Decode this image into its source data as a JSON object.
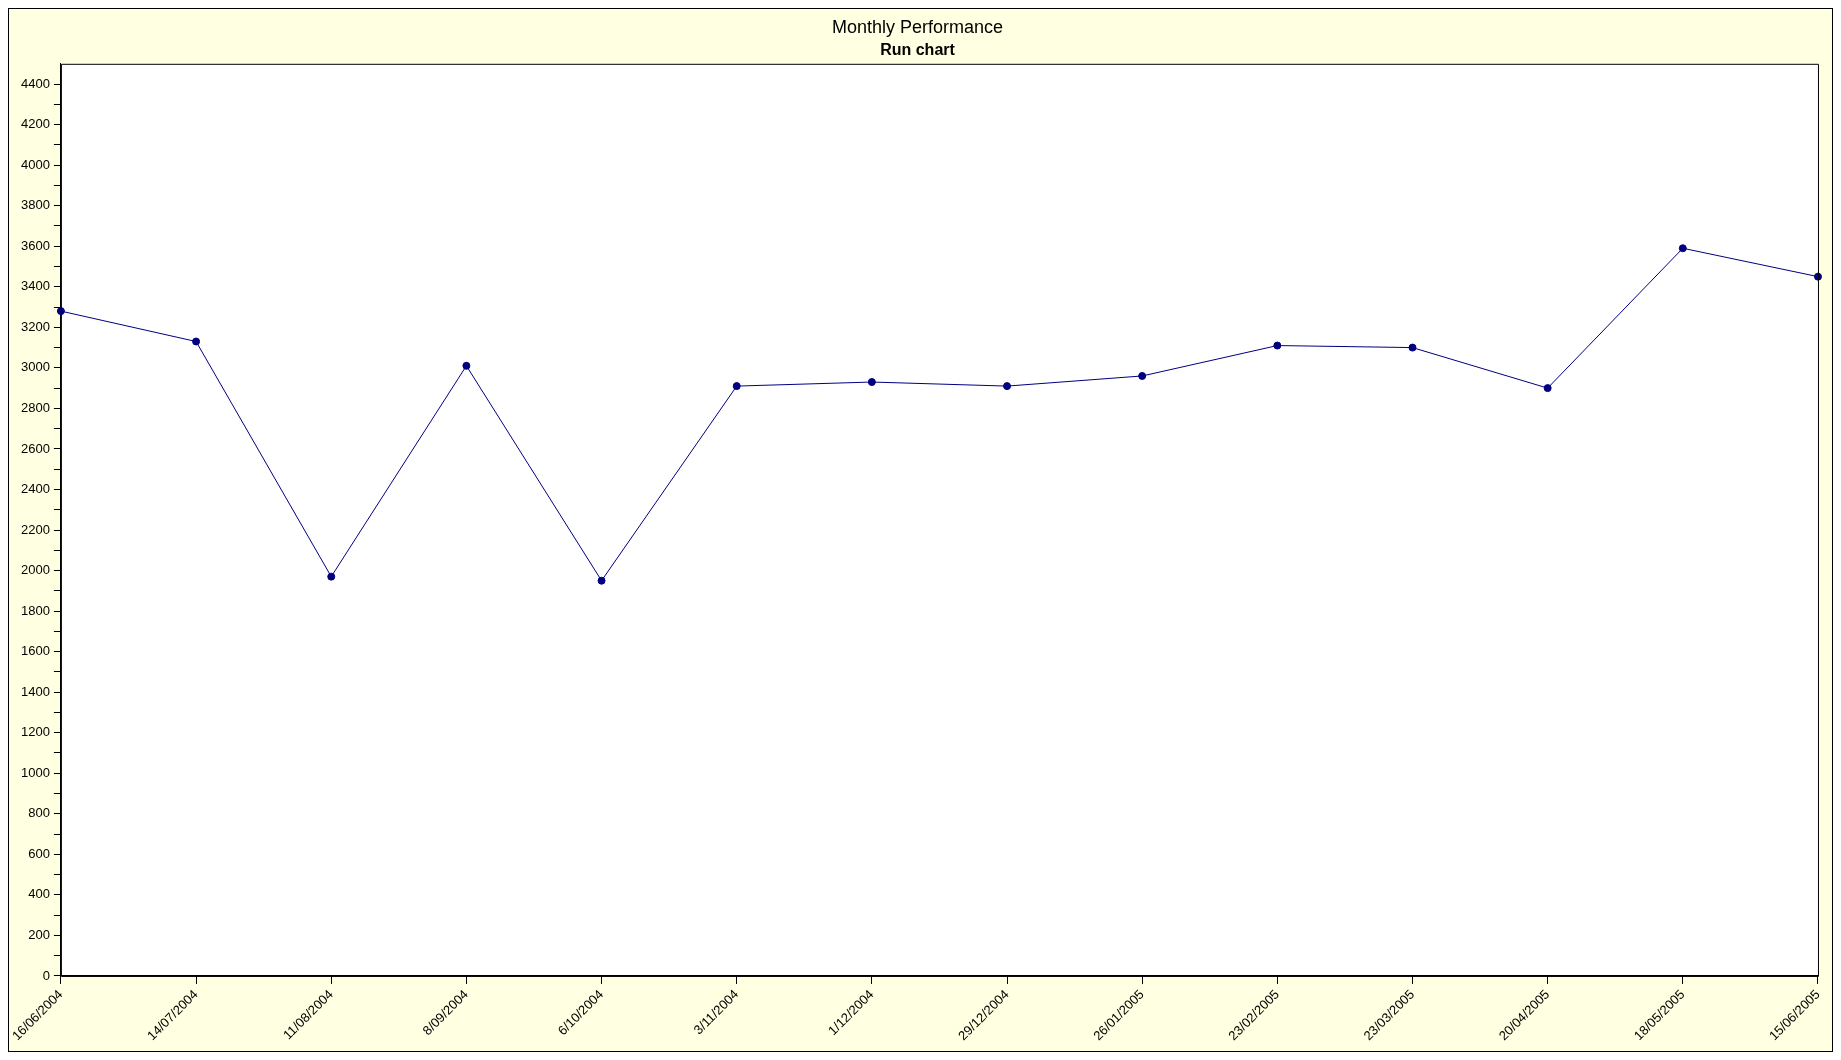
{
  "chart_data": {
    "type": "line",
    "title": "Monthly Performance",
    "subtitle": "Run chart",
    "categories": [
      "16/06/2004",
      "14/07/2004",
      "11/08/2004",
      "8/09/2004",
      "6/10/2004",
      "3/11/2004",
      "1/12/2004",
      "29/12/2004",
      "26/01/2005",
      "23/02/2005",
      "23/03/2005",
      "20/04/2005",
      "18/05/2005",
      "15/06/2005"
    ],
    "series": [
      {
        "color": "#000080",
        "values": [
          3280,
          3130,
          1970,
          3010,
          1950,
          2910,
          2930,
          2910,
          2960,
          3110,
          3100,
          2900,
          3590,
          3450
        ]
      }
    ],
    "ylim": [
      0,
      4500
    ],
    "yticks": [
      0,
      {
        "value": 100,
        "label": null
      },
      200,
      {
        "value": 300,
        "label": null
      },
      400,
      {
        "value": 500,
        "label": null
      },
      600,
      {
        "value": 700,
        "label": null
      },
      800,
      {
        "value": 900,
        "label": null
      },
      1000,
      {
        "value": 1100,
        "label": null
      },
      1200,
      {
        "value": 1300,
        "label": null
      },
      1400,
      {
        "value": 1500,
        "label": null
      },
      1600,
      {
        "value": 1700,
        "label": null
      },
      1800,
      {
        "value": 1900,
        "label": null
      },
      2000,
      {
        "value": 2100,
        "label": null
      },
      2200,
      {
        "value": 2300,
        "label": null
      },
      2400,
      {
        "value": 2500,
        "label": null
      },
      2600,
      {
        "value": 2700,
        "label": null
      },
      2800,
      {
        "value": 2900,
        "label": null
      },
      3000,
      {
        "value": 3100,
        "label": null
      },
      3200,
      {
        "value": 3300,
        "label": null
      },
      3400,
      {
        "value": 3500,
        "label": null
      },
      3600,
      {
        "value": 3700,
        "label": null
      },
      3800,
      {
        "value": 3900,
        "label": null
      },
      4000,
      {
        "value": 4100,
        "label": null
      },
      4200,
      {
        "value": 4300,
        "label": null
      },
      4400
    ],
    "grid": false,
    "legend": false,
    "marker": "circle",
    "line_style": "solid"
  }
}
